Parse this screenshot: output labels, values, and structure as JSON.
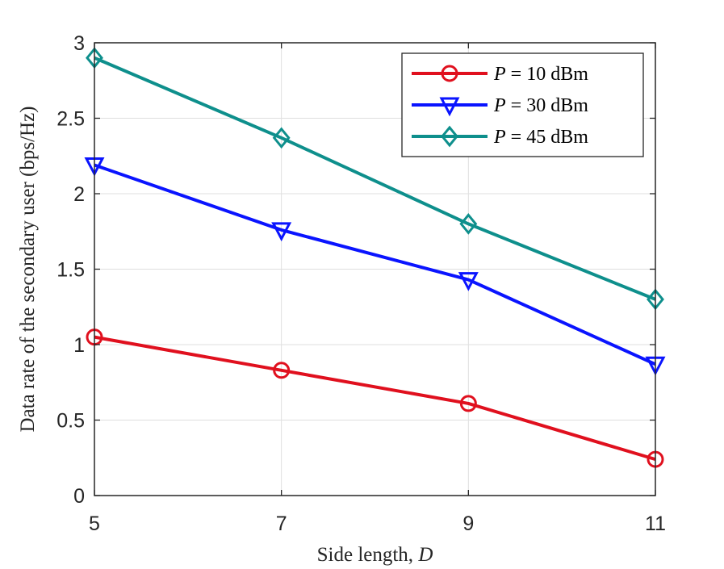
{
  "chart_data": {
    "type": "line",
    "title": "",
    "xlabel": "Side length, D",
    "ylabel": "Data rate of the secondary user (bps/Hz)",
    "x": [
      5,
      7,
      9,
      11
    ],
    "xlim": [
      5,
      11
    ],
    "ylim": [
      0,
      3
    ],
    "xticks": [
      5,
      7,
      9,
      11
    ],
    "yticks": [
      0,
      0.5,
      1,
      1.5,
      2,
      2.5,
      3
    ],
    "xtick_labels": [
      "5",
      "7",
      "9",
      "11"
    ],
    "ytick_labels": [
      "0",
      "0.5",
      "1",
      "1.5",
      "2",
      "2.5",
      "3"
    ],
    "grid": true,
    "legend_position": "top-right",
    "series": [
      {
        "name": "P = 10 dBm",
        "legend_var": "P",
        "legend_rest": " = 10 dBm",
        "marker": "circle",
        "color": "#E0101E",
        "values": [
          1.05,
          0.83,
          0.61,
          0.24
        ]
      },
      {
        "name": "P = 30 dBm",
        "legend_var": "P",
        "legend_rest": " = 30 dBm",
        "marker": "triangle-down",
        "color": "#0A14FF",
        "values": [
          2.19,
          1.76,
          1.43,
          0.87
        ]
      },
      {
        "name": "P = 45 dBm",
        "legend_var": "P",
        "legend_rest": " = 45 dBm",
        "marker": "diamond",
        "color": "#0E8F8C",
        "values": [
          2.9,
          2.37,
          1.8,
          1.3
        ]
      }
    ]
  }
}
